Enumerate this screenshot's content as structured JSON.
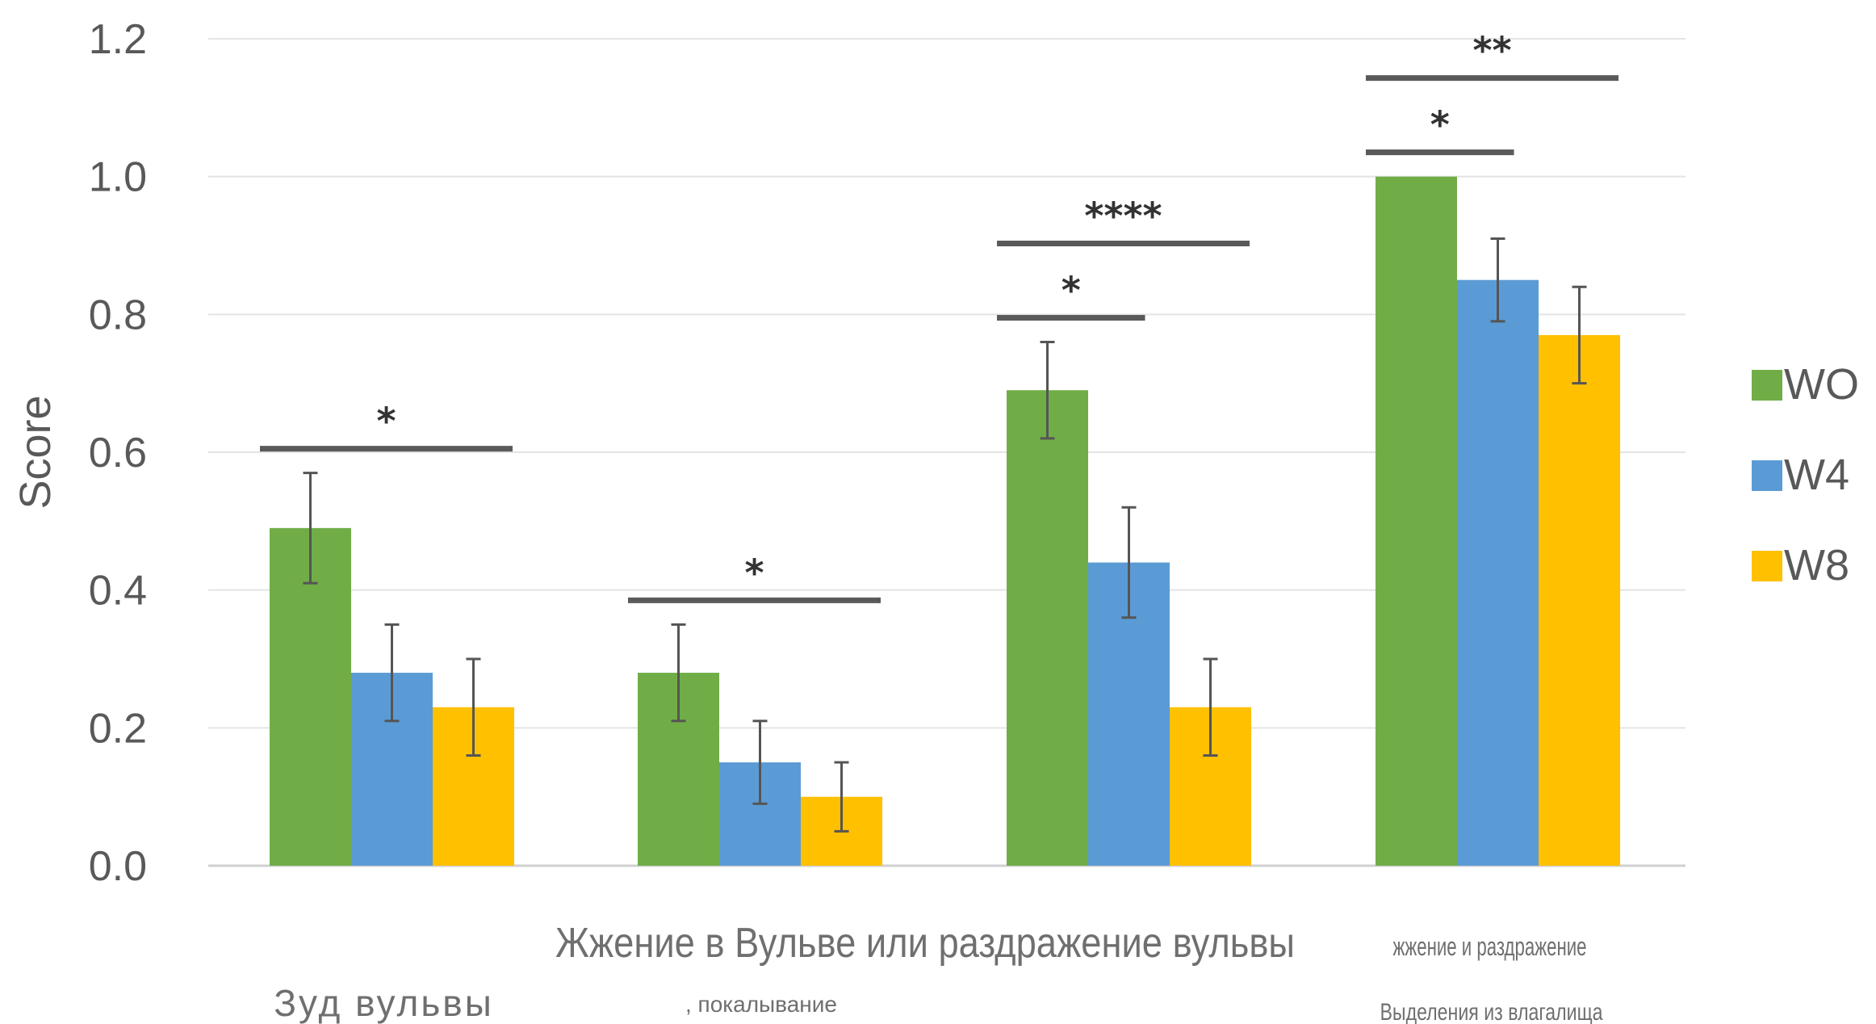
{
  "chart_data": {
    "type": "bar",
    "ylabel": "Score",
    "ylim": [
      0,
      1.2
    ],
    "yticks": [
      "0.0",
      "0.2",
      "0.4",
      "0.6",
      "0.8",
      "1.0",
      "1.2"
    ],
    "categories": [
      {
        "sub": "",
        "main": "Зуд вульвы"
      },
      {
        "sub": "",
        "main": "Жжение в Вульве или раздражение вульвы",
        "sub2": ", покалывание"
      },
      {
        "sub": "",
        "main": ""
      },
      {
        "sub": "жжение и раздражение",
        "main": "Выделения из влагалища"
      }
    ],
    "series": [
      {
        "name": "WO",
        "color": "#70ad47",
        "values": [
          0.49,
          0.28,
          0.69,
          1.0
        ],
        "errors": [
          0.08,
          0.07,
          0.07,
          0.0
        ]
      },
      {
        "name": "W4",
        "color": "#5b9bd5",
        "values": [
          0.28,
          0.15,
          0.44,
          0.85
        ],
        "errors": [
          0.07,
          0.06,
          0.08,
          0.06
        ]
      },
      {
        "name": "W8",
        "color": "#ffc000",
        "values": [
          0.23,
          0.1,
          0.23,
          0.77
        ],
        "errors": [
          0.07,
          0.05,
          0.07,
          0.07
        ]
      }
    ],
    "significance": [
      {
        "category": 0,
        "from": 0,
        "to": 2,
        "level": 0,
        "stars": "*"
      },
      {
        "category": 1,
        "from": 0,
        "to": 2,
        "level": 0,
        "stars": "*"
      },
      {
        "category": 2,
        "from": 0,
        "to": 1,
        "level": 0,
        "stars": "*"
      },
      {
        "category": 2,
        "from": 0,
        "to": 2,
        "level": 1,
        "stars": "****"
      },
      {
        "category": 3,
        "from": 0,
        "to": 1,
        "level": 0,
        "stars": "*"
      },
      {
        "category": 3,
        "from": 0,
        "to": 2,
        "level": 1,
        "stars": "**"
      }
    ],
    "grid": true,
    "legend": "right"
  }
}
